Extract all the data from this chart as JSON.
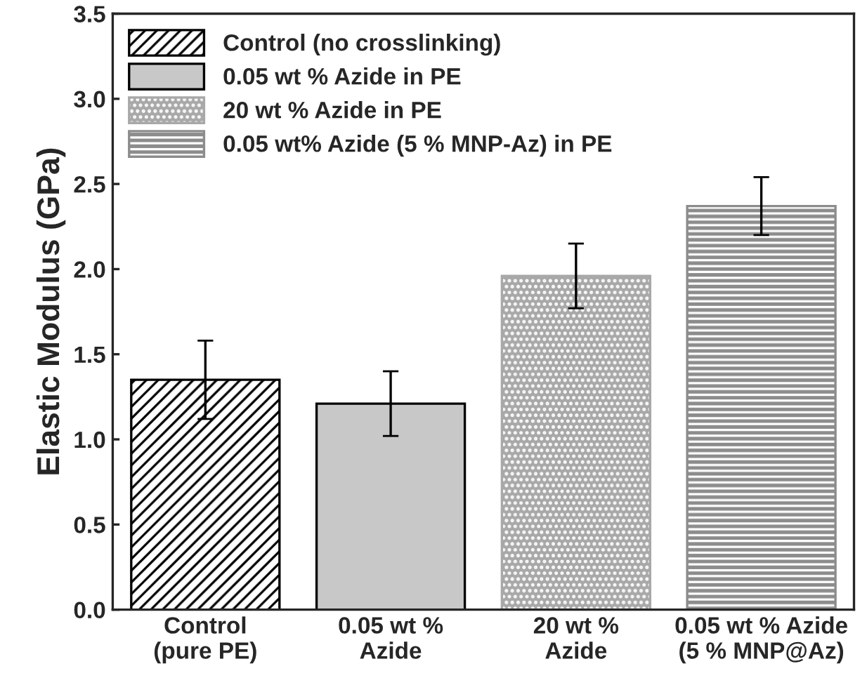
{
  "chart_data": {
    "type": "bar",
    "ylabel": "Elastic Modulus (GPa)",
    "categories": [
      "Control\n(pure PE)",
      "0.05 wt %\nAzide",
      "20 wt %\nAzide",
      "0.05 wt % Azide\n(5 % MNP@Az)"
    ],
    "series": [
      {
        "name": "Control (no crosslinking)",
        "color": "#000000",
        "values": [
          1.35,
          null,
          null,
          null
        ],
        "errors": [
          0.23,
          null,
          null,
          null
        ]
      },
      {
        "name": "0.05 wt % Azide in PE",
        "color": "#c8c8c8",
        "values": [
          null,
          1.21,
          null,
          null
        ],
        "errors": [
          null,
          0.19,
          null,
          null
        ]
      },
      {
        "name": "20 wt % Azide in PE",
        "color": "#a8a8a8",
        "values": [
          null,
          null,
          1.96,
          null
        ],
        "errors": [
          null,
          null,
          0.19,
          null
        ]
      },
      {
        "name": "0.05 wt% Azide (5 % MNP-Az) in PE",
        "color": "#8c8c8c",
        "values": [
          null,
          null,
          null,
          2.37
        ],
        "errors": [
          null,
          null,
          null,
          0.17
        ]
      }
    ],
    "ylim": [
      0,
      3.5
    ],
    "yticks": [
      {
        "value": 0,
        "label": "0.0"
      },
      0.5,
      {
        "value": 1,
        "label": "1.0"
      },
      1.5,
      {
        "value": 2,
        "label": "2.0"
      },
      2.5,
      {
        "value": 3,
        "label": "3.0"
      },
      3.5
    ],
    "grid": false,
    "legend": "top left"
  }
}
